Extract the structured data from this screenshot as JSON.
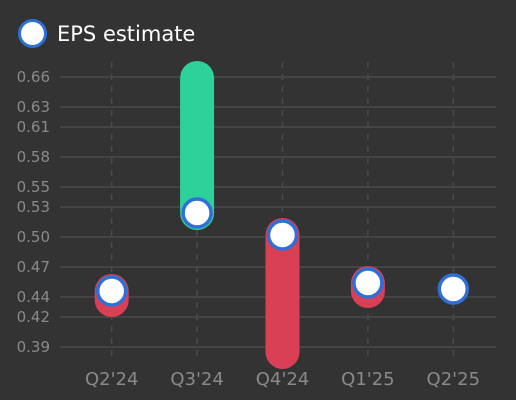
{
  "legend": {
    "label": "EPS estimate"
  },
  "colors": {
    "background": "#333333",
    "beat": "#2dd29a",
    "miss": "#d93f55",
    "estimate_fill": "#ffffff",
    "estimate_stroke": "#2f6fd6",
    "grid": "#4a4a4a",
    "tick_text": "#8a8a8a"
  },
  "chart_data": {
    "type": "scatter",
    "categories": [
      "Q2'24",
      "Q3'24",
      "Q4'24",
      "Q1'25",
      "Q2'25"
    ],
    "series": [
      {
        "name": "EPS estimate",
        "values": [
          0.446,
          0.524,
          0.502,
          0.454,
          0.448
        ]
      }
    ],
    "actual": [
      0.437,
      0.659,
      0.385,
      0.446,
      null
    ],
    "y_ticks": [
      "0.39",
      "0.42",
      "0.44",
      "0.47",
      "0.50",
      "0.53",
      "0.55",
      "0.58",
      "0.61",
      "0.63",
      "0.66"
    ],
    "ylim": [
      0.375,
      0.675
    ],
    "grid": true,
    "legend_position": "top-left"
  }
}
